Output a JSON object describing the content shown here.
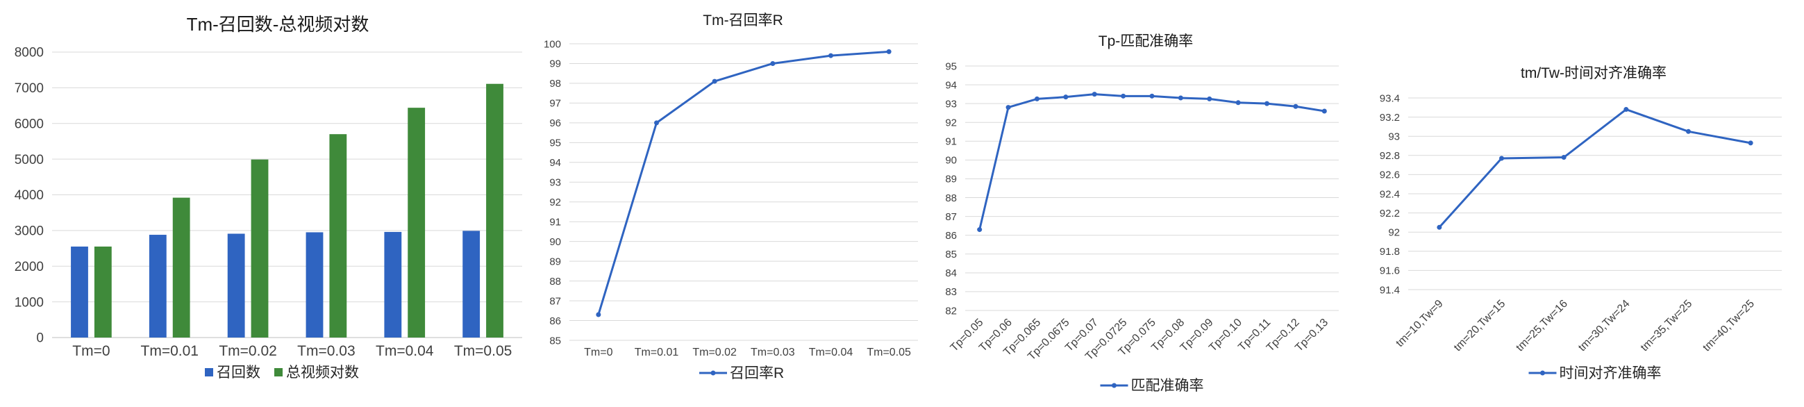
{
  "colors": {
    "blue": "#2f64c1",
    "green": "#3f8a3a",
    "grid": "#d9d9d9",
    "axis_text": "#404040"
  },
  "chart_data": [
    {
      "type": "bar",
      "title": "Tm-召回数-总视频对数",
      "categories": [
        "Tm=0",
        "Tm=0.01",
        "Tm=0.02",
        "Tm=0.03",
        "Tm=0.04",
        "Tm=0.05"
      ],
      "series": [
        {
          "name": "召回数",
          "color": "#2f64c1",
          "values": [
            2550,
            2880,
            2910,
            2950,
            2960,
            2990
          ]
        },
        {
          "name": "总视频对数",
          "color": "#3f8a3a",
          "values": [
            2550,
            3920,
            4990,
            5700,
            6440,
            7110
          ]
        }
      ],
      "ylim": [
        0,
        8000
      ],
      "yticks": [
        0,
        1000,
        2000,
        3000,
        4000,
        5000,
        6000,
        7000,
        8000
      ],
      "grid": true,
      "legend": "bottom"
    },
    {
      "type": "line",
      "title": "Tm-召回率R",
      "categories": [
        "Tm=0",
        "Tm=0.01",
        "Tm=0.02",
        "Tm=0.03",
        "Tm=0.04",
        "Tm=0.05"
      ],
      "series": [
        {
          "name": "召回率R",
          "color": "#2f64c1",
          "values": [
            86.3,
            96.0,
            98.1,
            99.0,
            99.4,
            99.6
          ]
        }
      ],
      "ylim": [
        85,
        100
      ],
      "yticks": [
        85,
        86,
        87,
        88,
        89,
        90,
        91,
        92,
        93,
        94,
        95,
        96,
        97,
        98,
        99,
        100
      ],
      "grid": true,
      "legend": "bottom"
    },
    {
      "type": "line",
      "title": "Tp-匹配准确率",
      "categories": [
        "Tp=0.05",
        "Tp=0.06",
        "Tp=0.065",
        "Tp=0.0675",
        "Tp=0.07",
        "Tp=0.0725",
        "Tp=0.075",
        "Tp=0.08",
        "Tp=0.09",
        "Tp=0.10",
        "Tp=0.11",
        "Tp=0.12",
        "Tp=0.13"
      ],
      "series": [
        {
          "name": "匹配准确率",
          "color": "#2f64c1",
          "values": [
            86.3,
            92.8,
            93.25,
            93.35,
            93.5,
            93.4,
            93.4,
            93.3,
            93.25,
            93.05,
            93.0,
            92.85,
            92.6
          ]
        }
      ],
      "ylim": [
        82,
        95
      ],
      "yticks": [
        82,
        83,
        84,
        85,
        86,
        87,
        88,
        89,
        90,
        91,
        92,
        93,
        94,
        95
      ],
      "grid": true,
      "legend": "bottom"
    },
    {
      "type": "line",
      "title": "tm/Tw-时间对齐准确率",
      "categories": [
        "tm=10,Tw=9",
        "tm=20,Tw=15",
        "tm=25,Tw=16",
        "tm=30,Tw=24",
        "tm=35,Tw=25",
        "tm=40,Tw=25"
      ],
      "series": [
        {
          "name": "时间对齐准确率",
          "color": "#2f64c1",
          "values": [
            92.05,
            92.77,
            92.78,
            93.28,
            93.05,
            92.93
          ]
        }
      ],
      "ylim": [
        91.4,
        93.4
      ],
      "yticks": [
        "91.4",
        "91.6",
        "91.8",
        "92",
        "92.2",
        "92.4",
        "92.6",
        "92.8",
        "93",
        "93.2",
        "93.4"
      ],
      "grid": true,
      "legend": "bottom"
    }
  ]
}
